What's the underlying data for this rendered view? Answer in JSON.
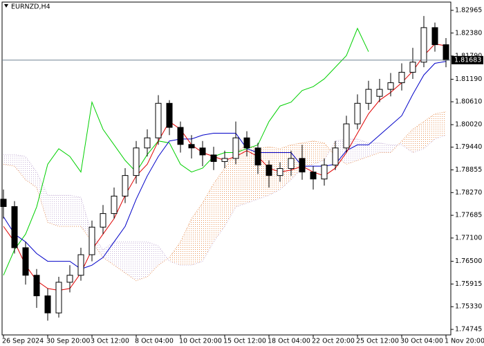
{
  "chart_data": {
    "type": "candlestick",
    "title": "EURNZD,H4",
    "categories": [
      "26 Sep 2024",
      null,
      null,
      null,
      "30 Sep 20:00",
      null,
      null,
      null,
      "3 Oct 12:00",
      null,
      null,
      null,
      "8 Oct 04:00",
      null,
      null,
      null,
      "10 Oct 20:00",
      null,
      null,
      null,
      "15 Oct 12:00",
      null,
      null,
      null,
      "18 Oct 04:00",
      null,
      null,
      null,
      "22 Oct 20:00",
      null,
      null,
      null,
      "25 Oct 12:00",
      null,
      null,
      null,
      "30 Oct 04:00",
      null,
      null,
      null,
      "1 Nov 20:00"
    ],
    "open": [
      1.781,
      1.7791,
      1.7685,
      1.7614,
      1.7561,
      1.7517,
      1.7596,
      1.7614,
      1.7667,
      1.7738,
      1.7773,
      1.7818,
      1.7871,
      1.7942,
      1.7968,
      1.8057,
      1.7995,
      1.7951,
      1.7942,
      1.7924,
      1.7907,
      1.7915,
      1.7968,
      1.7942,
      1.7898,
      1.7871,
      1.7889,
      1.7915,
      1.788,
      1.7862,
      1.7898,
      1.7942,
      1.8004,
      1.8057,
      1.8075,
      1.8093,
      1.811,
      1.8137,
      1.8163,
      1.8252,
      1.8208
    ],
    "high": [
      1.7835,
      1.7805,
      1.77,
      1.763,
      1.758,
      1.761,
      1.764,
      1.7685,
      1.7755,
      1.7795,
      1.784,
      1.789,
      1.796,
      1.799,
      1.8078,
      1.8065,
      1.801,
      1.7975,
      1.796,
      1.7945,
      1.7935,
      1.801,
      1.7985,
      1.7955,
      1.791,
      1.7905,
      1.7935,
      1.795,
      1.7895,
      1.7915,
      1.796,
      1.8025,
      1.808,
      1.8115,
      1.812,
      1.8135,
      1.816,
      1.82,
      1.8282,
      1.8265,
      1.8225
    ],
    "low": [
      1.776,
      1.767,
      1.759,
      1.753,
      1.7497,
      1.7505,
      1.757,
      1.76,
      1.765,
      1.772,
      1.776,
      1.78,
      1.785,
      1.792,
      1.795,
      1.7975,
      1.793,
      1.7915,
      1.7895,
      1.7885,
      1.789,
      1.79,
      1.792,
      1.7875,
      1.784,
      1.7855,
      1.787,
      1.786,
      1.7835,
      1.7845,
      1.7885,
      1.793,
      1.799,
      1.804,
      1.806,
      1.8075,
      1.809,
      1.812,
      1.815,
      1.819,
      1.815
    ],
    "close": [
      1.7791,
      1.7685,
      1.7614,
      1.7561,
      1.7517,
      1.7596,
      1.7614,
      1.7667,
      1.7738,
      1.7773,
      1.7818,
      1.7871,
      1.7942,
      1.7968,
      1.8057,
      1.7995,
      1.7951,
      1.7942,
      1.7924,
      1.7907,
      1.7915,
      1.7968,
      1.7942,
      1.7898,
      1.7871,
      1.7889,
      1.7915,
      1.788,
      1.7862,
      1.7898,
      1.7942,
      1.8004,
      1.8057,
      1.8093,
      1.8093,
      1.811,
      1.8137,
      1.8163,
      1.8252,
      1.8208,
      1.8168
    ],
    "tenkan": [
      1.774,
      1.77,
      1.764,
      1.76,
      1.758,
      1.7575,
      1.758,
      1.762,
      1.768,
      1.772,
      1.776,
      1.782,
      1.787,
      1.79,
      1.796,
      1.801,
      1.799,
      1.795,
      1.793,
      1.792,
      1.791,
      1.792,
      1.7935,
      1.792,
      1.789,
      1.788,
      1.7885,
      1.7895,
      1.788,
      1.787,
      1.789,
      1.793,
      1.798,
      1.803,
      1.8065,
      1.8085,
      1.811,
      1.814,
      1.818,
      1.821,
      1.8205
    ],
    "kijun": [
      1.7765,
      1.772,
      1.77,
      1.767,
      1.765,
      1.765,
      1.765,
      1.763,
      1.764,
      1.766,
      1.77,
      1.774,
      1.781,
      1.787,
      1.792,
      1.796,
      1.7965,
      1.7965,
      1.7975,
      1.798,
      1.798,
      1.798,
      1.794,
      1.793,
      1.793,
      1.793,
      1.793,
      1.7895,
      1.7895,
      1.7895,
      1.79,
      1.7935,
      1.795,
      1.795,
      1.7975,
      1.8,
      1.8025,
      1.808,
      1.813,
      1.816,
      1.8165
    ],
    "chikou": [
      1.7614,
      1.768,
      1.772,
      1.779,
      1.79,
      1.794,
      1.792,
      1.788,
      1.806,
      1.799,
      1.795,
      1.791,
      1.788,
      1.7925,
      1.796,
      1.7955,
      1.79,
      1.788,
      1.789,
      1.792,
      1.793,
      1.793,
      1.794,
      1.795,
      1.801,
      1.805,
      1.806,
      1.809,
      1.81,
      1.812,
      1.815,
      1.818,
      1.825,
      1.819,
      null,
      null,
      null,
      null,
      null,
      null,
      null
    ],
    "span_a": [
      1.79,
      1.7895,
      1.786,
      1.784,
      1.775,
      1.774,
      1.774,
      1.774,
      1.77,
      1.766,
      1.764,
      1.762,
      1.76,
      1.761,
      1.764,
      1.766,
      1.77,
      1.776,
      1.78,
      1.785,
      1.789,
      1.793,
      1.795,
      1.794,
      1.7945,
      1.794,
      1.795,
      1.7955,
      1.796,
      1.7955,
      1.792,
      1.79,
      1.791,
      1.792,
      1.793,
      1.793,
      1.796,
      1.799,
      1.801,
      1.803,
      1.8035
    ],
    "span_b": [
      1.7925,
      1.7925,
      1.792,
      1.788,
      1.782,
      1.782,
      1.782,
      1.7815,
      1.772,
      1.768,
      1.77,
      1.77,
      1.77,
      1.77,
      1.769,
      1.765,
      1.764,
      1.764,
      1.765,
      1.77,
      1.774,
      1.779,
      1.78,
      1.781,
      1.782,
      1.7835,
      1.786,
      1.789,
      1.79,
      1.791,
      1.796,
      1.7965,
      1.7965,
      1.7955,
      1.7955,
      1.795,
      1.795,
      1.793,
      1.794,
      1.7965,
      1.7975
    ],
    "colors": {
      "candle": "#000000",
      "up_body": "#ffffff",
      "tenkan": "#e00000",
      "kijun": "#0000c8",
      "chikou": "#00d000",
      "cloud_up": "#e8955a",
      "cloud_down": "#c8b4d8",
      "price_line": "#6f8090"
    },
    "current_price": 1.81683,
    "ylim": [
      1.74603,
      1.83178
    ],
    "yticks": [
      1.82965,
      {
        "value": 1.8238,
        "label": "1.82380"
      },
      {
        "value": 1.8179,
        "label": "1.81790"
      },
      {
        "value": 1.8119,
        "label": "1.81190"
      },
      {
        "value": 1.8061,
        "label": "1.80610"
      },
      {
        "value": 1.8002,
        "label": "1.80020"
      },
      {
        "value": 1.7944,
        "label": "1.79440"
      },
      1.78855,
      {
        "value": 1.7827,
        "label": "1.78270"
      },
      1.77685,
      {
        "value": 1.771,
        "label": "1.77100"
      },
      {
        "value": 1.765,
        "label": "1.76500"
      },
      1.75915,
      {
        "value": 1.7533,
        "label": "1.75330"
      },
      1.74745
    ],
    "grid": false
  }
}
